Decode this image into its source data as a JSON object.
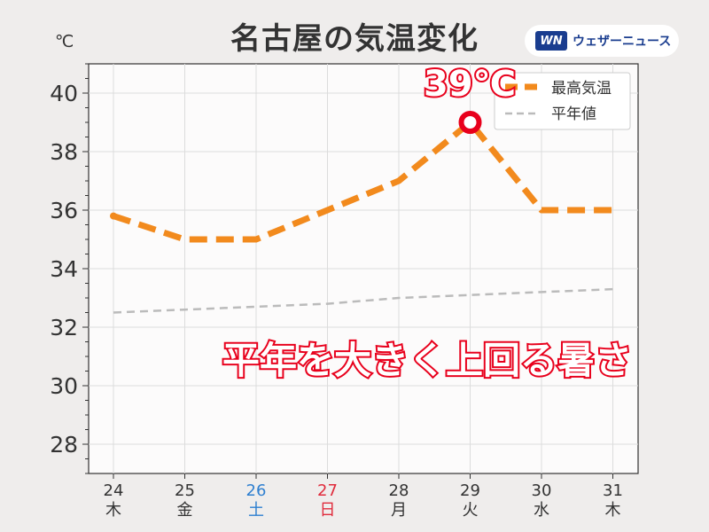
{
  "title": "名古屋の気温変化",
  "logo": {
    "mark": "WN",
    "text": "ウェザーニュース"
  },
  "unit": "℃",
  "callouts": {
    "peak": "39℃",
    "message": "平年を大きく上回る暑さ"
  },
  "colors": {
    "max_temp": "#f28a1d",
    "normal": "#bbbbbb",
    "saturday": "#2e7fd0",
    "sunday": "#e02b3c",
    "callout_red": "#e8001c"
  },
  "chart_data": {
    "type": "line",
    "title": "名古屋の気温変化",
    "ylabel": "℃",
    "ylim": [
      27,
      41
    ],
    "yticks": [
      28,
      30,
      32,
      34,
      36,
      38,
      40
    ],
    "grid": true,
    "legend_position": "top-right",
    "categories": [
      {
        "day": "24",
        "weekday": "木"
      },
      {
        "day": "25",
        "weekday": "金"
      },
      {
        "day": "26",
        "weekday": "土"
      },
      {
        "day": "27",
        "weekday": "日"
      },
      {
        "day": "28",
        "weekday": "月"
      },
      {
        "day": "29",
        "weekday": "火"
      },
      {
        "day": "30",
        "weekday": "水"
      },
      {
        "day": "31",
        "weekday": "木"
      }
    ],
    "series": [
      {
        "name": "最高気温",
        "values": [
          35.8,
          35,
          35,
          36,
          37,
          39,
          36,
          36
        ],
        "style": "thick-dashed",
        "color": "#f28a1d"
      },
      {
        "name": "平年値",
        "values": [
          32.5,
          32.6,
          32.7,
          32.8,
          33.0,
          33.1,
          33.2,
          33.3
        ],
        "style": "dashed",
        "color": "#bbbbbb"
      }
    ],
    "highlight_index": 5
  }
}
